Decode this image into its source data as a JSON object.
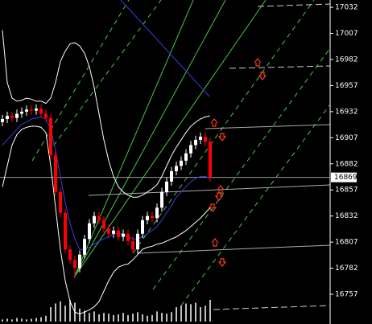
{
  "chart_data": {
    "type": "candlestick",
    "open": [
      16922,
      16925,
      16928,
      16926,
      16930,
      16932,
      16934,
      16933,
      16935,
      16930,
      16926,
      16890,
      16855,
      16835,
      16800,
      16790,
      16782,
      16795,
      16810,
      16825,
      16832,
      16828,
      16820,
      16815,
      16818,
      16812,
      16815,
      16808,
      16800,
      16815,
      16828,
      16832,
      16830,
      16840,
      16855,
      16865,
      16875,
      16880,
      16885,
      16892,
      16900,
      16905,
      16908,
      16903
    ],
    "high": [
      16929,
      16932,
      16932,
      16934,
      16936,
      16938,
      16938,
      16939,
      16939,
      16934,
      16930,
      16894,
      16859,
      16839,
      16804,
      16794,
      16799,
      16814,
      16829,
      16836,
      16836,
      16832,
      16824,
      16822,
      16822,
      16819,
      16819,
      16812,
      16819,
      16832,
      16836,
      16836,
      16844,
      16859,
      16869,
      16879,
      16884,
      16889,
      16896,
      16904,
      16909,
      16912,
      16912,
      16907
    ],
    "low": [
      16918,
      16921,
      16922,
      16922,
      16926,
      16928,
      16929,
      16929,
      16926,
      16922,
      16886,
      16851,
      16831,
      16796,
      16786,
      16773,
      16778,
      16791,
      16806,
      16821,
      16824,
      16816,
      16811,
      16811,
      16808,
      16808,
      16804,
      16796,
      16796,
      16811,
      16824,
      16826,
      16826,
      16836,
      16851,
      16861,
      16871,
      16876,
      16881,
      16888,
      16896,
      16901,
      16899,
      16865
    ],
    "close": [
      16925,
      16928,
      16926,
      16930,
      16932,
      16934,
      16933,
      16935,
      16930,
      16926,
      16890,
      16855,
      16835,
      16800,
      16790,
      16782,
      16795,
      16810,
      16825,
      16832,
      16828,
      16820,
      16815,
      16818,
      16812,
      16815,
      16808,
      16800,
      16815,
      16828,
      16832,
      16830,
      16840,
      16855,
      16865,
      16875,
      16880,
      16885,
      16892,
      16900,
      16905,
      16908,
      16903,
      16869
    ],
    "up_color": "#ffffff",
    "down_color": "#ff0000",
    "series": [
      {
        "color": "#ffffff",
        "values": [
          17010,
          16960,
          16945,
          16942,
          16943,
          16945,
          16944,
          16942,
          16942,
          16940,
          16945,
          16960,
          16980,
          16990,
          16997,
          16998,
          16995,
          16988,
          16975,
          16955,
          16930,
          16905,
          16885,
          16870,
          16860,
          16855,
          16852,
          16850,
          16850,
          16852,
          16855,
          16858,
          16862,
          16870,
          16880,
          16890,
          16898,
          16905,
          16912,
          16918,
          16922,
          16925,
          16927,
          16928
        ]
      },
      {
        "color": "#ffffff",
        "values": [
          16860,
          16880,
          16900,
          16910,
          16915,
          16917,
          16918,
          16918,
          16917,
          16912,
          16880,
          16840,
          16800,
          16770,
          16750,
          16740,
          16738,
          16740,
          16742,
          16745,
          16750,
          16760,
          16770,
          16778,
          16783,
          16785,
          16786,
          16790,
          16795,
          16800,
          16802,
          16803,
          16805,
          16806,
          16808,
          16810,
          16812,
          16815,
          16818,
          16822,
          16826,
          16830,
          16835,
          16840
        ]
      },
      {
        "color": "#3a3adf",
        "values": [
          16900,
          16905,
          16910,
          16915,
          16920,
          16922,
          16925,
          16926,
          16927,
          16925,
          16915,
          16895,
          16870,
          16845,
          16825,
          16810,
          16800,
          16800,
          16802,
          16805,
          16808,
          16810,
          16812,
          16815,
          16815,
          16815,
          16812,
          16810,
          16810,
          16812,
          16815,
          16818,
          16822,
          16828,
          16835,
          16842,
          16850,
          16855,
          16860,
          16865,
          16868,
          16870,
          16870,
          16868
        ]
      }
    ],
    "volume": [
      3,
      4,
      3,
      5,
      4,
      3,
      4,
      5,
      6,
      8,
      20,
      25,
      28,
      22,
      30,
      26,
      18,
      15,
      12,
      14,
      10,
      12,
      11,
      9,
      10,
      12,
      9,
      11,
      13,
      10,
      8,
      9,
      14,
      12,
      11,
      13,
      20,
      22,
      25,
      24,
      26,
      20,
      22,
      30
    ],
    "volume_color": "#ffffff",
    "vlim": [
      0,
      40
    ],
    "current_price": 16869,
    "ylim": [
      16728.5,
      17039
    ],
    "yticks": [
      17032,
      17007,
      16982,
      16957,
      16932,
      16907,
      16882,
      16857,
      16832,
      16807,
      16782,
      16757
    ]
  }
}
